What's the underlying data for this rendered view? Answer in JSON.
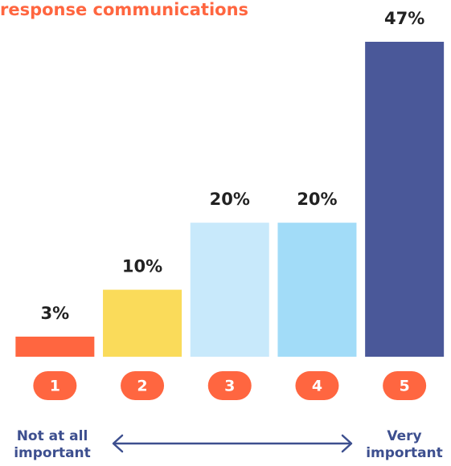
{
  "chart_data": {
    "type": "bar",
    "title": "response communications",
    "categories": [
      "1",
      "2",
      "3",
      "4",
      "5"
    ],
    "values": [
      3,
      10,
      20,
      20,
      47
    ],
    "value_labels": [
      "3%",
      "10%",
      "20%",
      "20%",
      "47%"
    ],
    "colors": [
      "#ff6640",
      "#fadb5a",
      "#c8e9fb",
      "#a2dcf8",
      "#4a5899"
    ],
    "low_label": "Not at all important",
    "high_label": "Very important"
  }
}
